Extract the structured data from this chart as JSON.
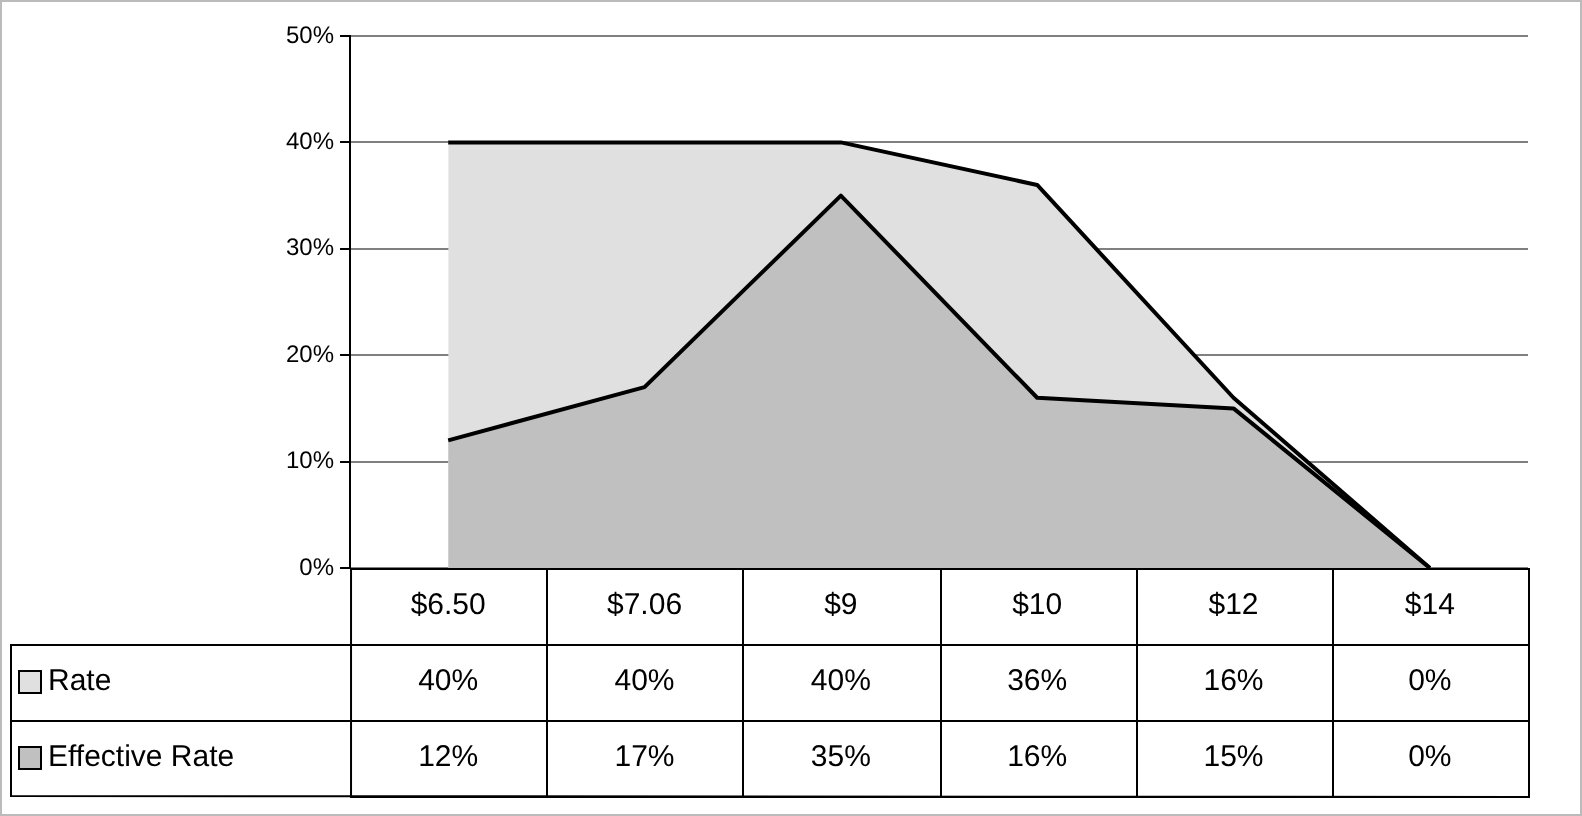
{
  "chart_data": {
    "type": "area",
    "categories": [
      "$6.50",
      "$7.06",
      "$9",
      "$10",
      "$12",
      "$14"
    ],
    "series": [
      {
        "name": "Rate",
        "color": "#e0e0e0",
        "values": [
          40,
          40,
          40,
          36,
          16,
          0
        ],
        "value_labels": [
          "40%",
          "40%",
          "40%",
          "36%",
          "16%",
          "0%"
        ]
      },
      {
        "name": "Effective Rate",
        "color": "#c0c0c0",
        "values": [
          12,
          17,
          35,
          16,
          15,
          0
        ],
        "value_labels": [
          "12%",
          "17%",
          "35%",
          "16%",
          "15%",
          "0%"
        ]
      }
    ],
    "ylim": [
      0,
      50
    ],
    "yticks": [
      {
        "value": 0,
        "label": "0%"
      },
      {
        "value": 10,
        "label": "10%"
      },
      {
        "value": 20,
        "label": "20%"
      },
      {
        "value": 30,
        "label": "30%"
      },
      {
        "value": 40,
        "label": "40%"
      },
      {
        "value": 50,
        "label": "50%"
      }
    ],
    "grid": "y",
    "legend": "bottom"
  }
}
